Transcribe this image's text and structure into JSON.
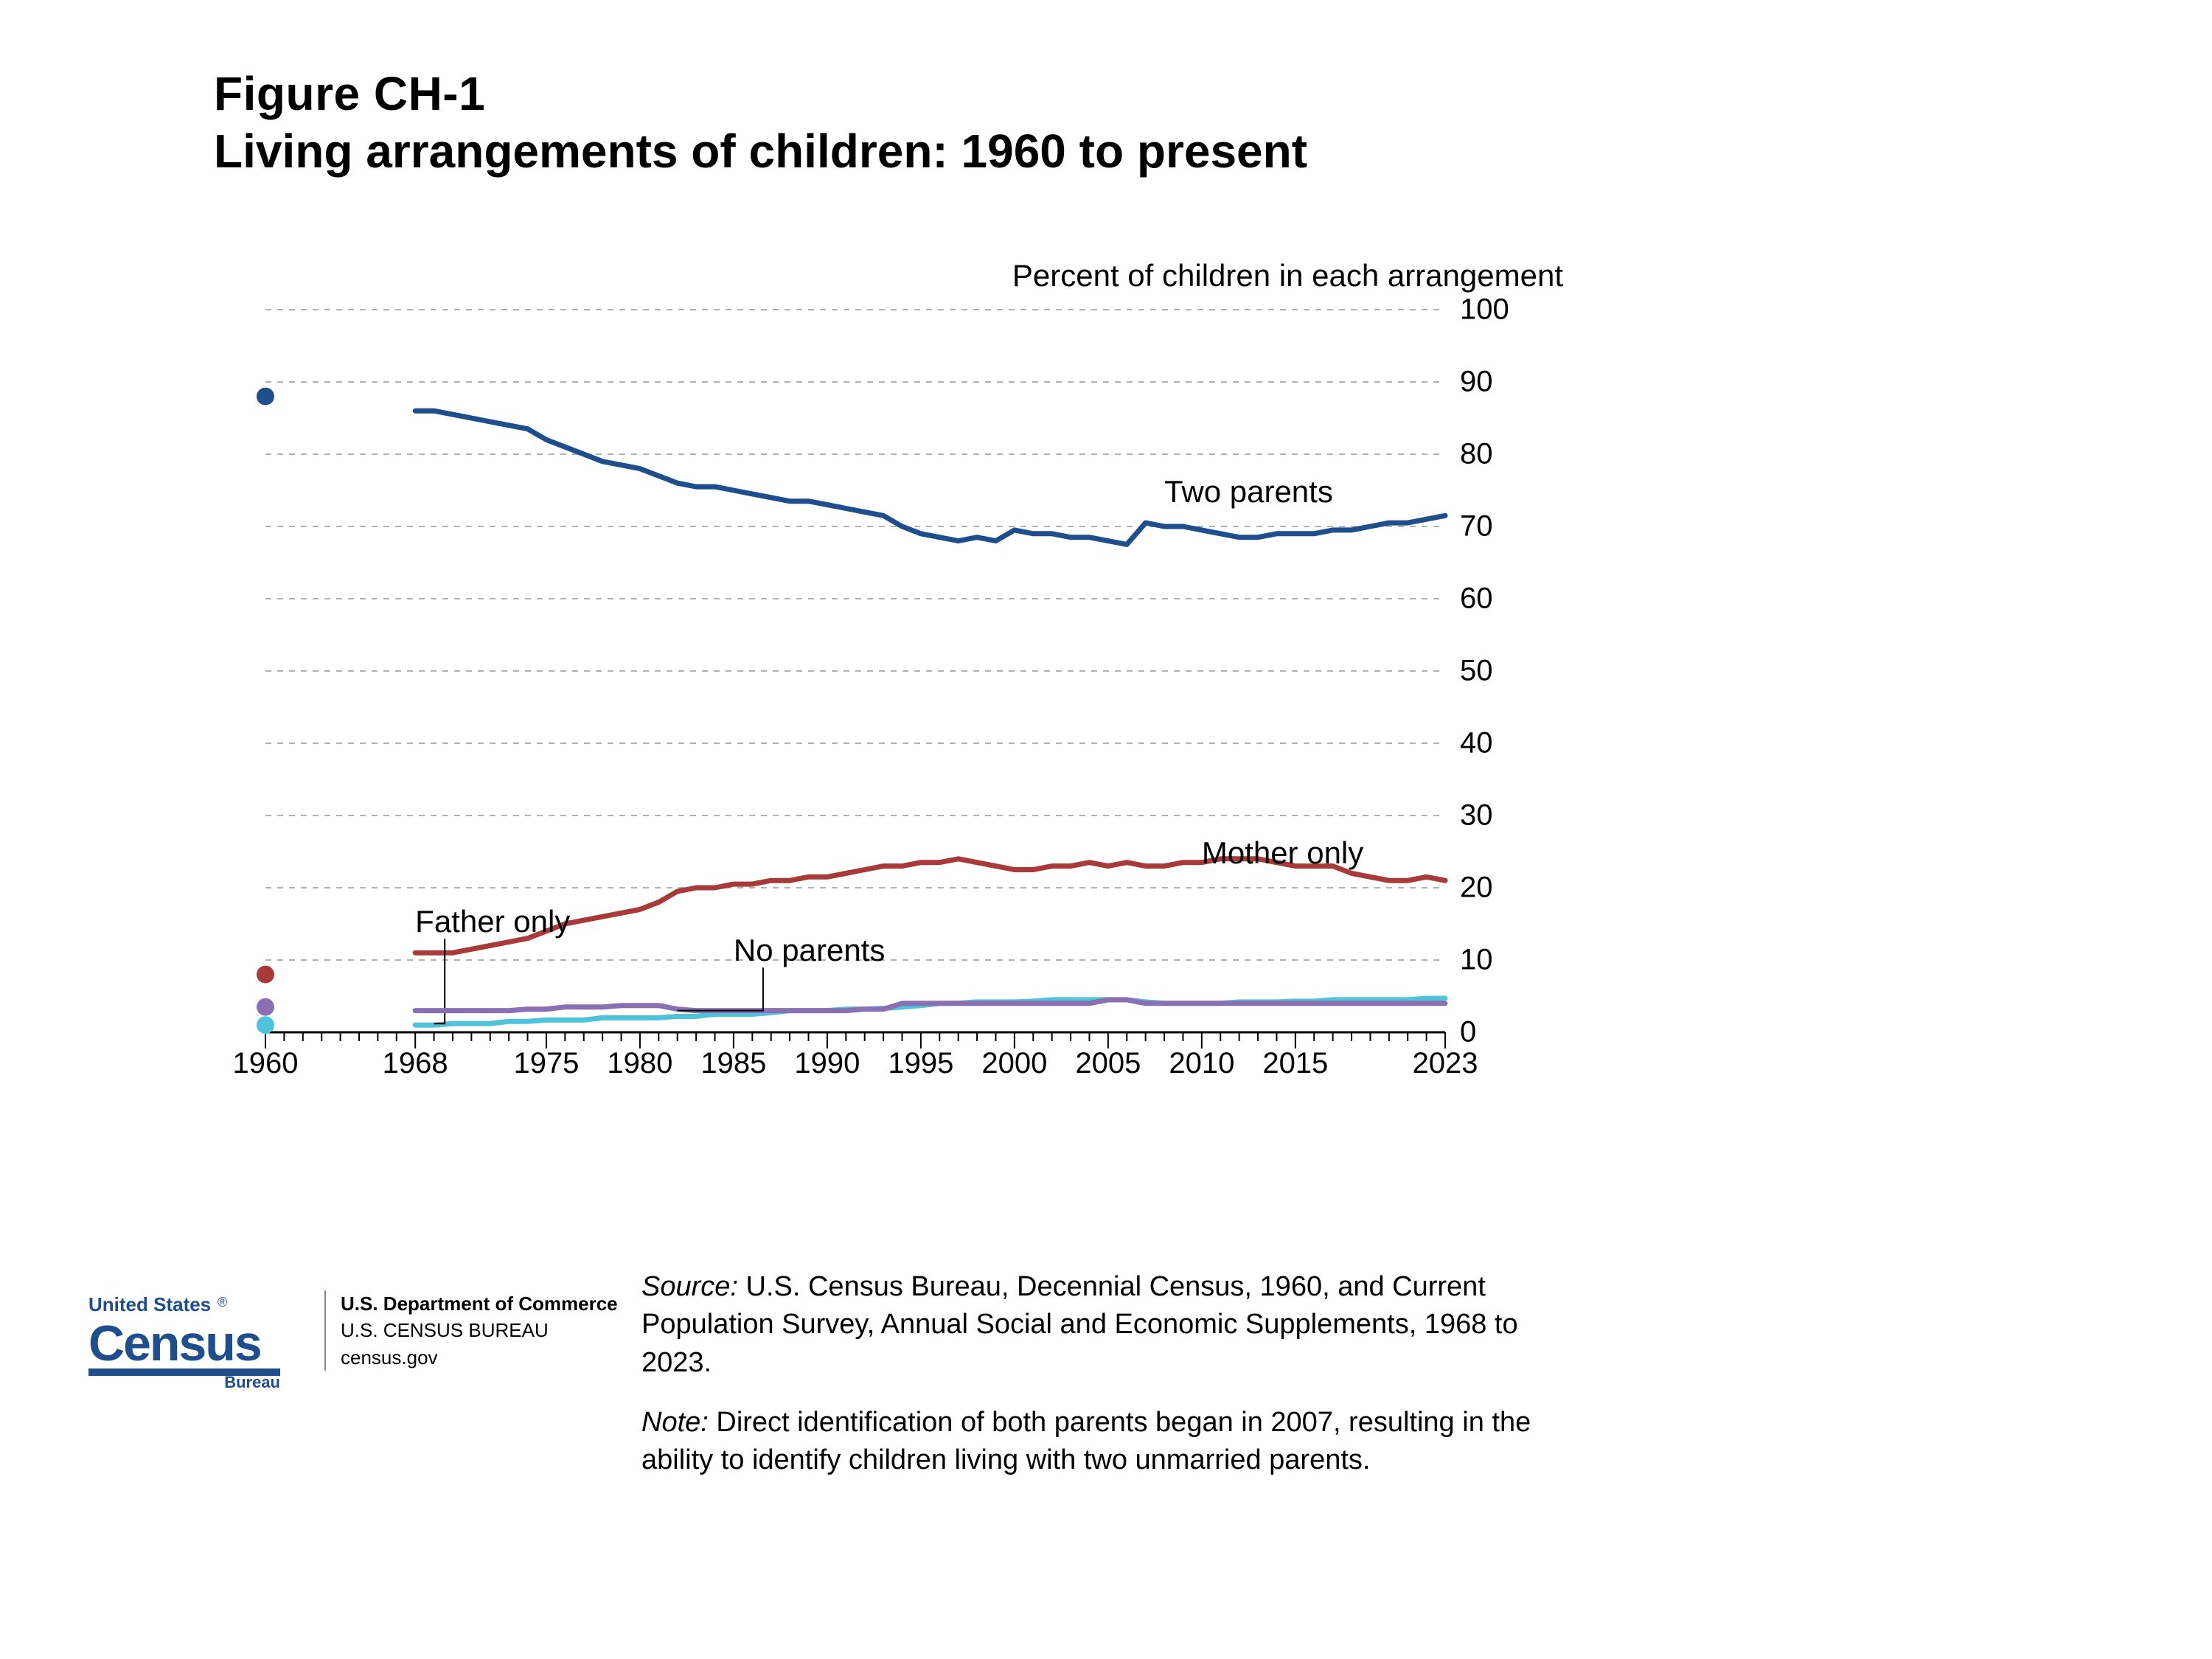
{
  "figure": {
    "number": "Figure CH-1",
    "title": "Living arrangements of children: 1960 to present"
  },
  "chart": {
    "type": "line",
    "y_axis_title": "Percent of children in each arrangement",
    "background_color": "#ffffff",
    "grid_color": "#b0b0b0",
    "grid_dash": "8,8",
    "axis_color": "#000000",
    "line_width": 7,
    "marker_radius": 12,
    "title_fontsize": 42,
    "tick_fontsize": 40,
    "label_fontsize": 42,
    "x": {
      "min": 1960,
      "max": 2023,
      "ticks_labeled": [
        1960,
        1968,
        1975,
        1980,
        1985,
        1990,
        1995,
        2000,
        2005,
        2010,
        2015,
        2023
      ],
      "minor_start": 1960,
      "minor_step": 1
    },
    "y": {
      "min": 0,
      "max": 100,
      "step": 10
    },
    "isolated_year": 1960,
    "series": [
      {
        "name": "Two parents",
        "color": "#1f4e8c",
        "label_pos": {
          "x": 2008,
          "y": 75
        },
        "isolated_point": {
          "x": 1960,
          "y": 88
        },
        "points": [
          [
            1968,
            86
          ],
          [
            1969,
            86
          ],
          [
            1970,
            85.5
          ],
          [
            1971,
            85
          ],
          [
            1972,
            84.5
          ],
          [
            1973,
            84
          ],
          [
            1974,
            83.5
          ],
          [
            1975,
            82
          ],
          [
            1976,
            81
          ],
          [
            1977,
            80
          ],
          [
            1978,
            79
          ],
          [
            1979,
            78.5
          ],
          [
            1980,
            78
          ],
          [
            1981,
            77
          ],
          [
            1982,
            76
          ],
          [
            1983,
            75.5
          ],
          [
            1984,
            75.5
          ],
          [
            1985,
            75
          ],
          [
            1986,
            74.5
          ],
          [
            1987,
            74
          ],
          [
            1988,
            73.5
          ],
          [
            1989,
            73.5
          ],
          [
            1990,
            73
          ],
          [
            1991,
            72.5
          ],
          [
            1992,
            72
          ],
          [
            1993,
            71.5
          ],
          [
            1994,
            70
          ],
          [
            1995,
            69
          ],
          [
            1996,
            68.5
          ],
          [
            1997,
            68
          ],
          [
            1998,
            68.5
          ],
          [
            1999,
            68
          ],
          [
            2000,
            69.5
          ],
          [
            2001,
            69
          ],
          [
            2002,
            69
          ],
          [
            2003,
            68.5
          ],
          [
            2004,
            68.5
          ],
          [
            2005,
            68
          ],
          [
            2006,
            67.5
          ],
          [
            2007,
            70.5
          ],
          [
            2008,
            70
          ],
          [
            2009,
            70
          ],
          [
            2010,
            69.5
          ],
          [
            2011,
            69
          ],
          [
            2012,
            68.5
          ],
          [
            2013,
            68.5
          ],
          [
            2014,
            69
          ],
          [
            2015,
            69
          ],
          [
            2016,
            69
          ],
          [
            2017,
            69.5
          ],
          [
            2018,
            69.5
          ],
          [
            2019,
            70
          ],
          [
            2020,
            70.5
          ],
          [
            2021,
            70.5
          ],
          [
            2022,
            71
          ],
          [
            2023,
            71.5
          ]
        ]
      },
      {
        "name": "Mother only",
        "color": "#a83a3a",
        "label_pos": {
          "x": 2010,
          "y": 25
        },
        "isolated_point": {
          "x": 1960,
          "y": 8
        },
        "points": [
          [
            1968,
            11
          ],
          [
            1969,
            11
          ],
          [
            1970,
            11
          ],
          [
            1971,
            11.5
          ],
          [
            1972,
            12
          ],
          [
            1973,
            12.5
          ],
          [
            1974,
            13
          ],
          [
            1975,
            14
          ],
          [
            1976,
            15
          ],
          [
            1977,
            15.5
          ],
          [
            1978,
            16
          ],
          [
            1979,
            16.5
          ],
          [
            1980,
            17
          ],
          [
            1981,
            18
          ],
          [
            1982,
            19.5
          ],
          [
            1983,
            20
          ],
          [
            1984,
            20
          ],
          [
            1985,
            20.5
          ],
          [
            1986,
            20.5
          ],
          [
            1987,
            21
          ],
          [
            1988,
            21
          ],
          [
            1989,
            21.5
          ],
          [
            1990,
            21.5
          ],
          [
            1991,
            22
          ],
          [
            1992,
            22.5
          ],
          [
            1993,
            23
          ],
          [
            1994,
            23
          ],
          [
            1995,
            23.5
          ],
          [
            1996,
            23.5
          ],
          [
            1997,
            24
          ],
          [
            1998,
            23.5
          ],
          [
            1999,
            23
          ],
          [
            2000,
            22.5
          ],
          [
            2001,
            22.5
          ],
          [
            2002,
            23
          ],
          [
            2003,
            23
          ],
          [
            2004,
            23.5
          ],
          [
            2005,
            23
          ],
          [
            2006,
            23.5
          ],
          [
            2007,
            23
          ],
          [
            2008,
            23
          ],
          [
            2009,
            23.5
          ],
          [
            2010,
            23.5
          ],
          [
            2011,
            24
          ],
          [
            2012,
            24
          ],
          [
            2013,
            24
          ],
          [
            2014,
            23.5
          ],
          [
            2015,
            23
          ],
          [
            2016,
            23
          ],
          [
            2017,
            23
          ],
          [
            2018,
            22
          ],
          [
            2019,
            21.5
          ],
          [
            2020,
            21
          ],
          [
            2021,
            21
          ],
          [
            2022,
            21.5
          ],
          [
            2023,
            21
          ]
        ]
      },
      {
        "name": "Father only",
        "color": "#4fc3d9",
        "label_pos": {
          "x": 1968,
          "y": 15.5
        },
        "label_leader": {
          "to_x": 1969,
          "to_y": 1.2
        },
        "isolated_point": {
          "x": 1960,
          "y": 1
        },
        "points": [
          [
            1968,
            1
          ],
          [
            1969,
            1
          ],
          [
            1970,
            1.2
          ],
          [
            1971,
            1.2
          ],
          [
            1972,
            1.2
          ],
          [
            1973,
            1.5
          ],
          [
            1974,
            1.5
          ],
          [
            1975,
            1.7
          ],
          [
            1976,
            1.7
          ],
          [
            1977,
            1.7
          ],
          [
            1978,
            2
          ],
          [
            1979,
            2
          ],
          [
            1980,
            2
          ],
          [
            1981,
            2
          ],
          [
            1982,
            2.2
          ],
          [
            1983,
            2.2
          ],
          [
            1984,
            2.5
          ],
          [
            1985,
            2.5
          ],
          [
            1986,
            2.5
          ],
          [
            1987,
            2.7
          ],
          [
            1988,
            3
          ],
          [
            1989,
            3
          ],
          [
            1990,
            3
          ],
          [
            1991,
            3.2
          ],
          [
            1992,
            3.2
          ],
          [
            1993,
            3.3
          ],
          [
            1994,
            3.5
          ],
          [
            1995,
            3.7
          ],
          [
            1996,
            4
          ],
          [
            1997,
            4
          ],
          [
            1998,
            4.2
          ],
          [
            1999,
            4.2
          ],
          [
            2000,
            4.2
          ],
          [
            2001,
            4.3
          ],
          [
            2002,
            4.5
          ],
          [
            2003,
            4.5
          ],
          [
            2004,
            4.5
          ],
          [
            2005,
            4.5
          ],
          [
            2006,
            4.5
          ],
          [
            2007,
            4.2
          ],
          [
            2008,
            4
          ],
          [
            2009,
            4
          ],
          [
            2010,
            4
          ],
          [
            2011,
            4
          ],
          [
            2012,
            4.2
          ],
          [
            2013,
            4.2
          ],
          [
            2014,
            4.2
          ],
          [
            2015,
            4.3
          ],
          [
            2016,
            4.3
          ],
          [
            2017,
            4.5
          ],
          [
            2018,
            4.5
          ],
          [
            2019,
            4.5
          ],
          [
            2020,
            4.5
          ],
          [
            2021,
            4.5
          ],
          [
            2022,
            4.7
          ],
          [
            2023,
            4.7
          ]
        ]
      },
      {
        "name": "No parents",
        "color": "#8a6fb3",
        "label_pos": {
          "x": 1985,
          "y": 11.5
        },
        "label_leader": {
          "to_x": 1982,
          "to_y": 3
        },
        "isolated_point": {
          "x": 1960,
          "y": 3.5
        },
        "points": [
          [
            1968,
            3
          ],
          [
            1969,
            3
          ],
          [
            1970,
            3
          ],
          [
            1971,
            3
          ],
          [
            1972,
            3
          ],
          [
            1973,
            3
          ],
          [
            1974,
            3.2
          ],
          [
            1975,
            3.2
          ],
          [
            1976,
            3.5
          ],
          [
            1977,
            3.5
          ],
          [
            1978,
            3.5
          ],
          [
            1979,
            3.7
          ],
          [
            1980,
            3.7
          ],
          [
            1981,
            3.7
          ],
          [
            1982,
            3.2
          ],
          [
            1983,
            3
          ],
          [
            1984,
            3
          ],
          [
            1985,
            3
          ],
          [
            1986,
            3
          ],
          [
            1987,
            3
          ],
          [
            1988,
            3
          ],
          [
            1989,
            3
          ],
          [
            1990,
            3
          ],
          [
            1991,
            3
          ],
          [
            1992,
            3.2
          ],
          [
            1993,
            3.2
          ],
          [
            1994,
            4
          ],
          [
            1995,
            4
          ],
          [
            1996,
            4
          ],
          [
            1997,
            4
          ],
          [
            1998,
            4
          ],
          [
            1999,
            4
          ],
          [
            2000,
            4
          ],
          [
            2001,
            4
          ],
          [
            2002,
            4
          ],
          [
            2003,
            4
          ],
          [
            2004,
            4
          ],
          [
            2005,
            4.5
          ],
          [
            2006,
            4.5
          ],
          [
            2007,
            4
          ],
          [
            2008,
            4
          ],
          [
            2009,
            4
          ],
          [
            2010,
            4
          ],
          [
            2011,
            4
          ],
          [
            2012,
            4
          ],
          [
            2013,
            4
          ],
          [
            2014,
            4
          ],
          [
            2015,
            4
          ],
          [
            2016,
            4
          ],
          [
            2017,
            4
          ],
          [
            2018,
            4
          ],
          [
            2019,
            4
          ],
          [
            2020,
            4
          ],
          [
            2021,
            4
          ],
          [
            2022,
            4
          ],
          [
            2023,
            4
          ]
        ]
      }
    ]
  },
  "labels": {
    "two_parents": "Two parents",
    "mother_only": "Mother only",
    "father_only": "Father only",
    "no_parents": "No parents"
  },
  "footer": {
    "source_prefix": "Source:",
    "source_text": " U.S. Census Bureau, Decennial Census, 1960, and Current Population Survey, Annual Social and Economic Supplements, 1968 to 2023.",
    "note_prefix": "Note:",
    "note_text": " Direct identification of both parents began in 2007, resulting in the ability to identify children living with two unmarried parents."
  },
  "logo": {
    "brand_color": "#1f4e8c",
    "line1": "U.S. Department of Commerce",
    "line2": "U.S. CENSUS BUREAU",
    "line3": "census.gov",
    "top_text": "United States",
    "main_text": "Census",
    "sub_text": "Bureau",
    "registered": "®"
  }
}
